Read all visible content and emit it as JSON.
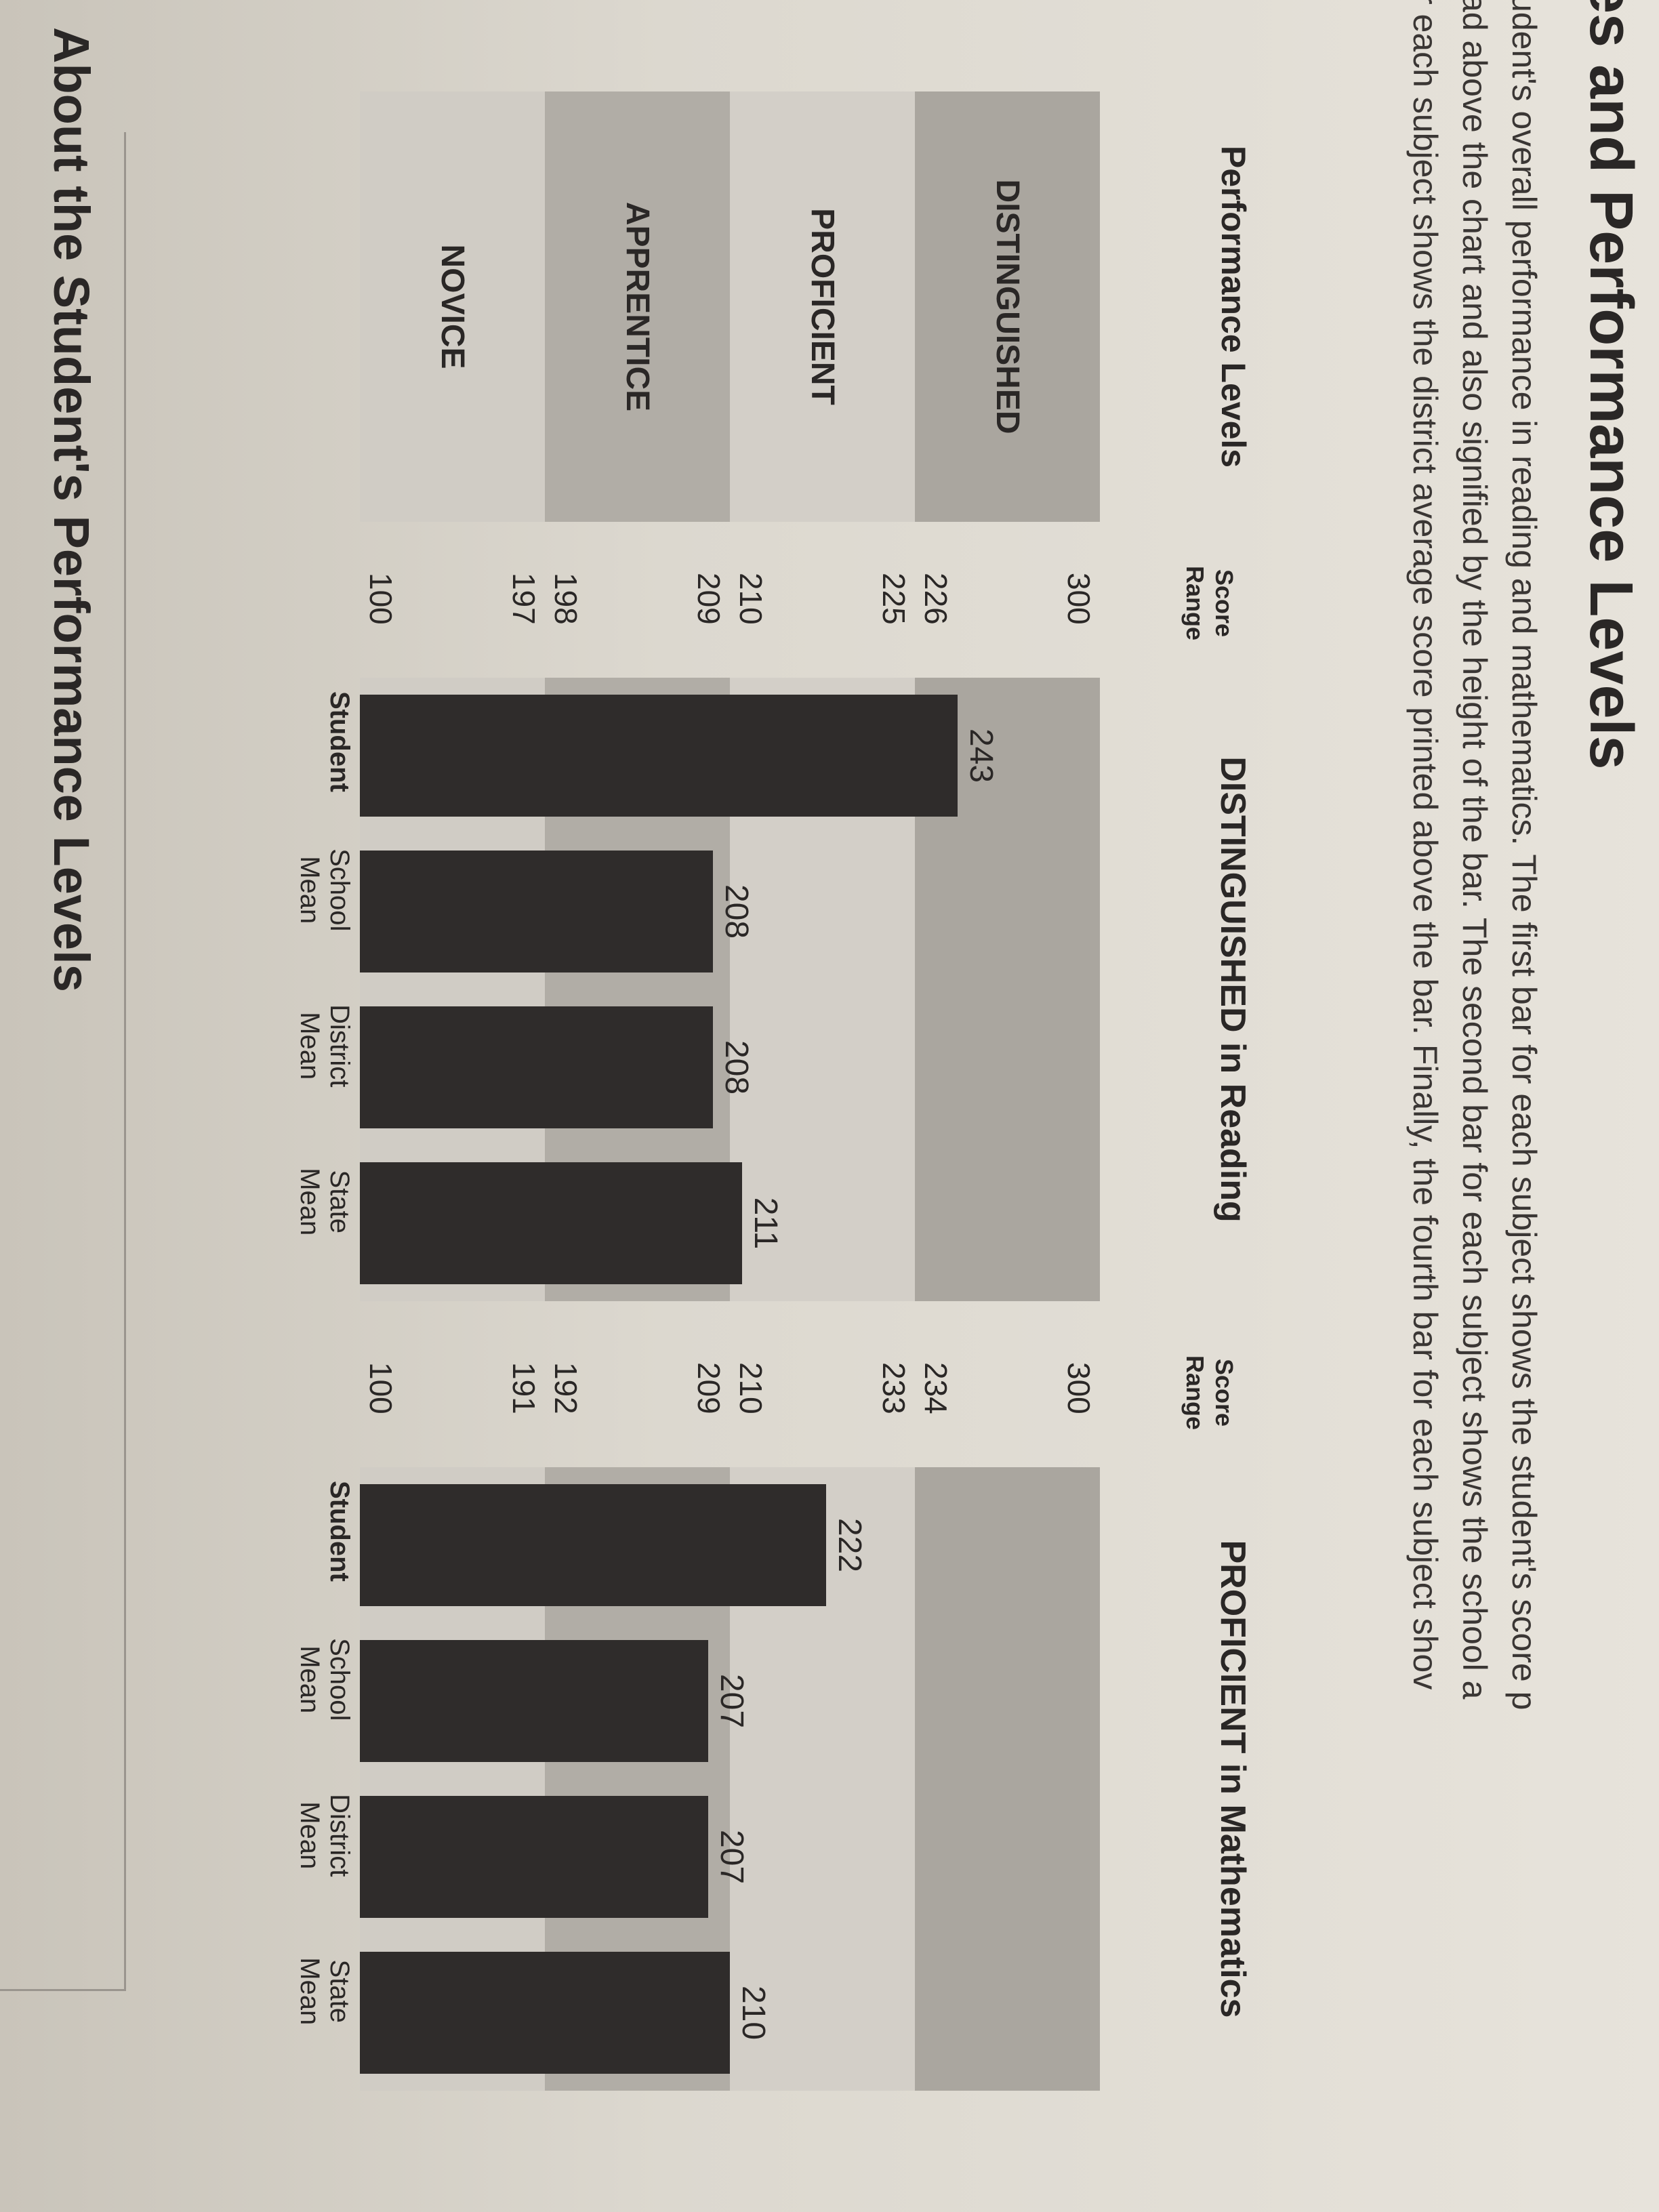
{
  "header": {
    "title": "es and Performance Levels",
    "paragraph": [
      "udent's overall performance in reading and mathematics. The first bar for each subject shows the student's score p",
      "ad above the chart and also signified by the height of the bar. The second bar for each subject shows the school a",
      "r each subject shows the district average score printed above the bar. Finally, the fourth bar for each subject shov"
    ]
  },
  "levels_table": {
    "title": "Performance Levels",
    "levels": [
      "DISTINGUISHED",
      "PROFICIENT",
      "APPRENTICE",
      "NOVICE"
    ],
    "colors": [
      "#aaa69f",
      "#d3cfc8",
      "#b1ada6",
      "#d0ccc5"
    ]
  },
  "chart_data": [
    {
      "type": "bar",
      "title": "DISTINGUISHED in Reading",
      "y_axis_label": "Score Range",
      "categories": [
        "Student",
        "School Mean",
        "District Mean",
        "State Mean"
      ],
      "values": [
        243,
        208,
        208,
        211
      ],
      "ylim": [
        100,
        300
      ],
      "yticks": [
        300,
        226,
        225,
        210,
        209,
        198,
        197,
        100
      ],
      "color": "#2f2c2b"
    },
    {
      "type": "bar",
      "title": "PROFICIENT in Mathematics",
      "y_axis_label": "Score Range",
      "categories": [
        "Student",
        "School Mean",
        "District Mean",
        "State Mean"
      ],
      "values": [
        222,
        207,
        207,
        210
      ],
      "ylim": [
        100,
        300
      ],
      "yticks": [
        300,
        234,
        233,
        210,
        209,
        192,
        191,
        100
      ],
      "color": "#2f2c2b"
    }
  ],
  "footer": {
    "title": "About the Student's Performance Levels"
  }
}
